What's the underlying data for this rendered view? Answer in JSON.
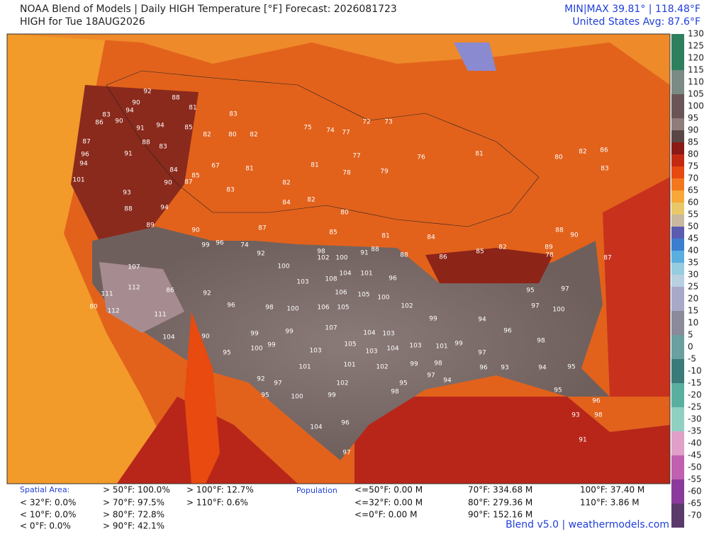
{
  "header": {
    "title": "NOAA Blend of Models | Daily HIGH Temperature [°F] Forecast: 2026081723",
    "subtitle": "HIGH for Tue 18AUG2026",
    "minmax": "MIN|MAX 39.81° | 118.48°F",
    "average": "United States Avg: 87.6°F"
  },
  "colorbar": {
    "ticks": [
      130,
      125,
      120,
      115,
      110,
      105,
      100,
      95,
      90,
      85,
      80,
      75,
      70,
      65,
      60,
      55,
      50,
      45,
      40,
      35,
      30,
      25,
      20,
      15,
      10,
      5,
      0,
      -5,
      -10,
      -15,
      -20,
      -25,
      -30,
      -35,
      -40,
      -45,
      -50,
      -55,
      -60,
      -65,
      -70
    ]
  },
  "stations": [
    92,
    88,
    90,
    94,
    91,
    83,
    86,
    90,
    94,
    85,
    81,
    83,
    82,
    80,
    82,
    75,
    74,
    77,
    72,
    73,
    87,
    96,
    94,
    91,
    88,
    83,
    84,
    90,
    87,
    85,
    67,
    83,
    81,
    82,
    81,
    78,
    77,
    79,
    76,
    81,
    80,
    82,
    86,
    83,
    101,
    93,
    94,
    88,
    89,
    90,
    99,
    96,
    74,
    92,
    87,
    84,
    82,
    80,
    85,
    81,
    84,
    98,
    102,
    100,
    91,
    88,
    88,
    86,
    85,
    82,
    78,
    89,
    88,
    90,
    87,
    107,
    112,
    111,
    80,
    112,
    111,
    104,
    86,
    92,
    96,
    100,
    103,
    108,
    104,
    101,
    96,
    106,
    105,
    98,
    100,
    106,
    105,
    100,
    102,
    107,
    104,
    103,
    99,
    99,
    99,
    100,
    95,
    90,
    103,
    105,
    103,
    104,
    103,
    101,
    99,
    101,
    101,
    102,
    99,
    98,
    92,
    97,
    100,
    99,
    102,
    98,
    95,
    97,
    94,
    96,
    93,
    94,
    95,
    96,
    95,
    93,
    98,
    91,
    104,
    96,
    97,
    95,
    97,
    100,
    97,
    95,
    99,
    94,
    97,
    96,
    98
  ],
  "footer": {
    "spatial_area": {
      "label": "Spatial Area:",
      "items": [
        "< 32°F: 0.0%",
        "< 10°F: 0.0%",
        "< 0°F: 0.0%",
        "> 50°F: 100.0%",
        "> 70°F: 97.5%",
        "> 80°F: 72.8%",
        "> 90°F: 42.1%",
        "> 100°F: 12.7%",
        "> 110°F: 0.6%"
      ]
    },
    "population": {
      "label": "Population",
      "items": [
        "<=50°F: 0.00 M",
        "<=32°F: 0.00 M",
        "<=0°F: 0.00 M",
        "70°F: 334.68 M",
        "80°F: 279.36 M",
        "90°F: 152.16 M",
        "100°F: 37.40 M",
        "110°F: 3.86 M"
      ]
    },
    "credit": "Blend v5.0 | weathermodels.com"
  }
}
